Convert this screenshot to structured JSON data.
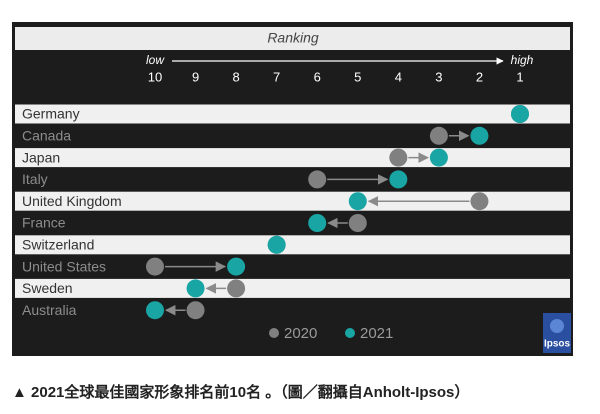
{
  "chart_data": {
    "type": "dumbbell",
    "title": "Ranking",
    "annotations": [
      "low",
      "high"
    ],
    "categories": [
      "Germany",
      "Canada",
      "Japan",
      "Italy",
      "United Kingdom",
      "France",
      "Switzerland",
      "United States",
      "Sweden",
      "Australia"
    ],
    "series": [
      {
        "name": "2020",
        "color": "#808080",
        "values": [
          1,
          3,
          4,
          6,
          2,
          5,
          7,
          10,
          8,
          9
        ]
      },
      {
        "name": "2021",
        "color": "#1aa5a5",
        "values": [
          1,
          2,
          3,
          4,
          5,
          6,
          7,
          8,
          9,
          10
        ]
      }
    ],
    "xlim": [
      10,
      1
    ],
    "xticks": [
      10,
      9,
      8,
      7,
      6,
      5,
      4,
      3,
      2,
      1
    ]
  },
  "logo": "Ipsos",
  "caption": "▲ 2021全球最佳國家形象排名前10名 。（圖／翻攝自Anholt-Ipsos）"
}
